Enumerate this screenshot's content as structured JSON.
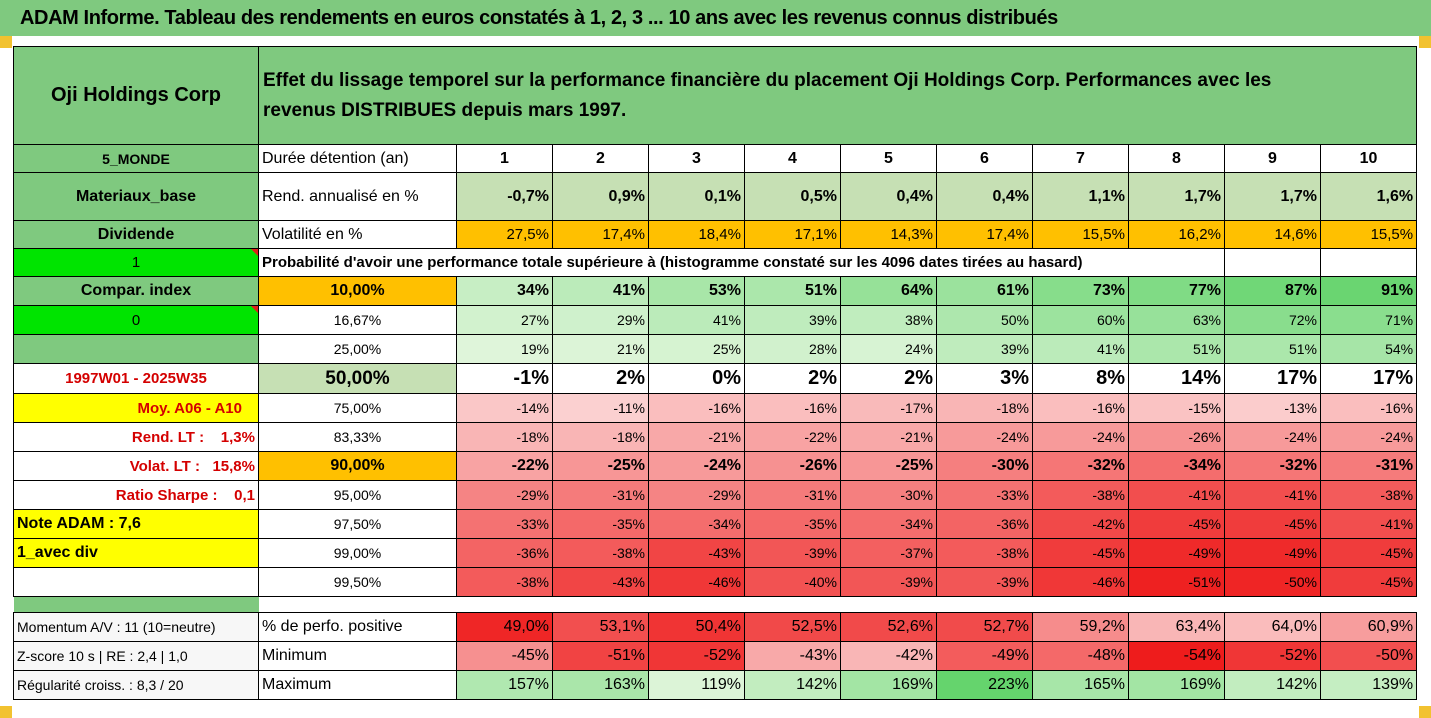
{
  "header": {
    "title": "ADAM Informe. Tableau des rendements en euros constatés à 1, 2, 3 ... 10 ans avec les revenus connus distribués"
  },
  "info": {
    "company": "Oji Holdings Corp",
    "description": "Effet du lissage temporel sur la performance financière du placement Oji Holdings Corp. Performances avec les revenus DISTRIBUES depuis mars 1997.",
    "region": "5_MONDE",
    "sector": "Materiaux_base",
    "dividend": "Dividende",
    "flag1": "1",
    "compar_index": "Compar. index",
    "flag0": "0",
    "period": "1997W01 - 2025W35",
    "moy": "Moy. A06 - A10",
    "rend_lt": "Rend. LT :    1,3%",
    "volat_lt": "Volat. LT :   15,8%",
    "sharpe": "Ratio Sharpe :    0,1",
    "note": "Note ADAM : 7,6",
    "avec_div": "1_avec div",
    "momentum": "Momentum A/V : 11 (10=neutre)",
    "zscore": "Z-score 10 s  | RE : 2,4 | 1,0",
    "regularite": "Régularité croiss. : 8,3 / 20"
  },
  "labels": {
    "duree": "Durée détention (an)",
    "rend": "Rend. annualisé en %",
    "vol": "Volatilité en %",
    "proba": "Probabilité d'avoir une performance totale supérieure à (histogramme constaté sur les 4096 dates tirées au hasard)",
    "pct_pos": "% de perfo. positive",
    "minimum": "Minimum",
    "maximum": "Maximum"
  },
  "years": [
    "1",
    "2",
    "3",
    "4",
    "5",
    "6",
    "7",
    "8",
    "9",
    "10"
  ],
  "rend": [
    "-0,7%",
    "0,9%",
    "0,1%",
    "0,5%",
    "0,4%",
    "0,4%",
    "1,1%",
    "1,7%",
    "1,7%",
    "1,6%"
  ],
  "vol": [
    "27,5%",
    "17,4%",
    "18,4%",
    "17,1%",
    "14,3%",
    "17,4%",
    "15,5%",
    "16,2%",
    "14,6%",
    "15,5%"
  ],
  "proba": [
    {
      "p": "10,00%",
      "v": [
        "34%",
        "41%",
        "53%",
        "51%",
        "64%",
        "61%",
        "73%",
        "77%",
        "87%",
        "91%"
      ]
    },
    {
      "p": "16,67%",
      "v": [
        "27%",
        "29%",
        "41%",
        "39%",
        "38%",
        "50%",
        "60%",
        "63%",
        "72%",
        "71%"
      ]
    },
    {
      "p": "25,00%",
      "v": [
        "19%",
        "21%",
        "25%",
        "28%",
        "24%",
        "39%",
        "41%",
        "51%",
        "51%",
        "54%"
      ]
    },
    {
      "p": "50,00%",
      "v": [
        "-1%",
        "2%",
        "0%",
        "2%",
        "2%",
        "3%",
        "8%",
        "14%",
        "17%",
        "17%"
      ]
    },
    {
      "p": "75,00%",
      "v": [
        "-14%",
        "-11%",
        "-16%",
        "-16%",
        "-17%",
        "-18%",
        "-16%",
        "-15%",
        "-13%",
        "-16%"
      ]
    },
    {
      "p": "83,33%",
      "v": [
        "-18%",
        "-18%",
        "-21%",
        "-22%",
        "-21%",
        "-24%",
        "-24%",
        "-26%",
        "-24%",
        "-24%"
      ]
    },
    {
      "p": "90,00%",
      "v": [
        "-22%",
        "-25%",
        "-24%",
        "-26%",
        "-25%",
        "-30%",
        "-32%",
        "-34%",
        "-32%",
        "-31%"
      ]
    },
    {
      "p": "95,00%",
      "v": [
        "-29%",
        "-31%",
        "-29%",
        "-31%",
        "-30%",
        "-33%",
        "-38%",
        "-41%",
        "-41%",
        "-38%"
      ]
    },
    {
      "p": "97,50%",
      "v": [
        "-33%",
        "-35%",
        "-34%",
        "-35%",
        "-34%",
        "-36%",
        "-42%",
        "-45%",
        "-45%",
        "-41%"
      ]
    },
    {
      "p": "99,00%",
      "v": [
        "-36%",
        "-38%",
        "-43%",
        "-39%",
        "-37%",
        "-38%",
        "-45%",
        "-49%",
        "-49%",
        "-45%"
      ]
    },
    {
      "p": "99,50%",
      "v": [
        "-38%",
        "-43%",
        "-46%",
        "-40%",
        "-39%",
        "-39%",
        "-46%",
        "-51%",
        "-50%",
        "-45%"
      ]
    }
  ],
  "pct_pos": [
    "49,0%",
    "53,1%",
    "50,4%",
    "52,5%",
    "52,6%",
    "52,7%",
    "59,2%",
    "63,4%",
    "64,0%",
    "60,9%"
  ],
  "minimum": [
    "-45%",
    "-51%",
    "-52%",
    "-43%",
    "-42%",
    "-49%",
    "-48%",
    "-54%",
    "-52%",
    "-50%"
  ],
  "maximum": [
    "157%",
    "163%",
    "119%",
    "142%",
    "169%",
    "223%",
    "165%",
    "169%",
    "142%",
    "139%"
  ],
  "colors": {
    "header_green": "#7fc97f",
    "light_green": "#c6e0b4",
    "orange": "#ffc000",
    "yellow": "#ffff00",
    "lime": "#00e400",
    "red_text": "#d40000"
  }
}
